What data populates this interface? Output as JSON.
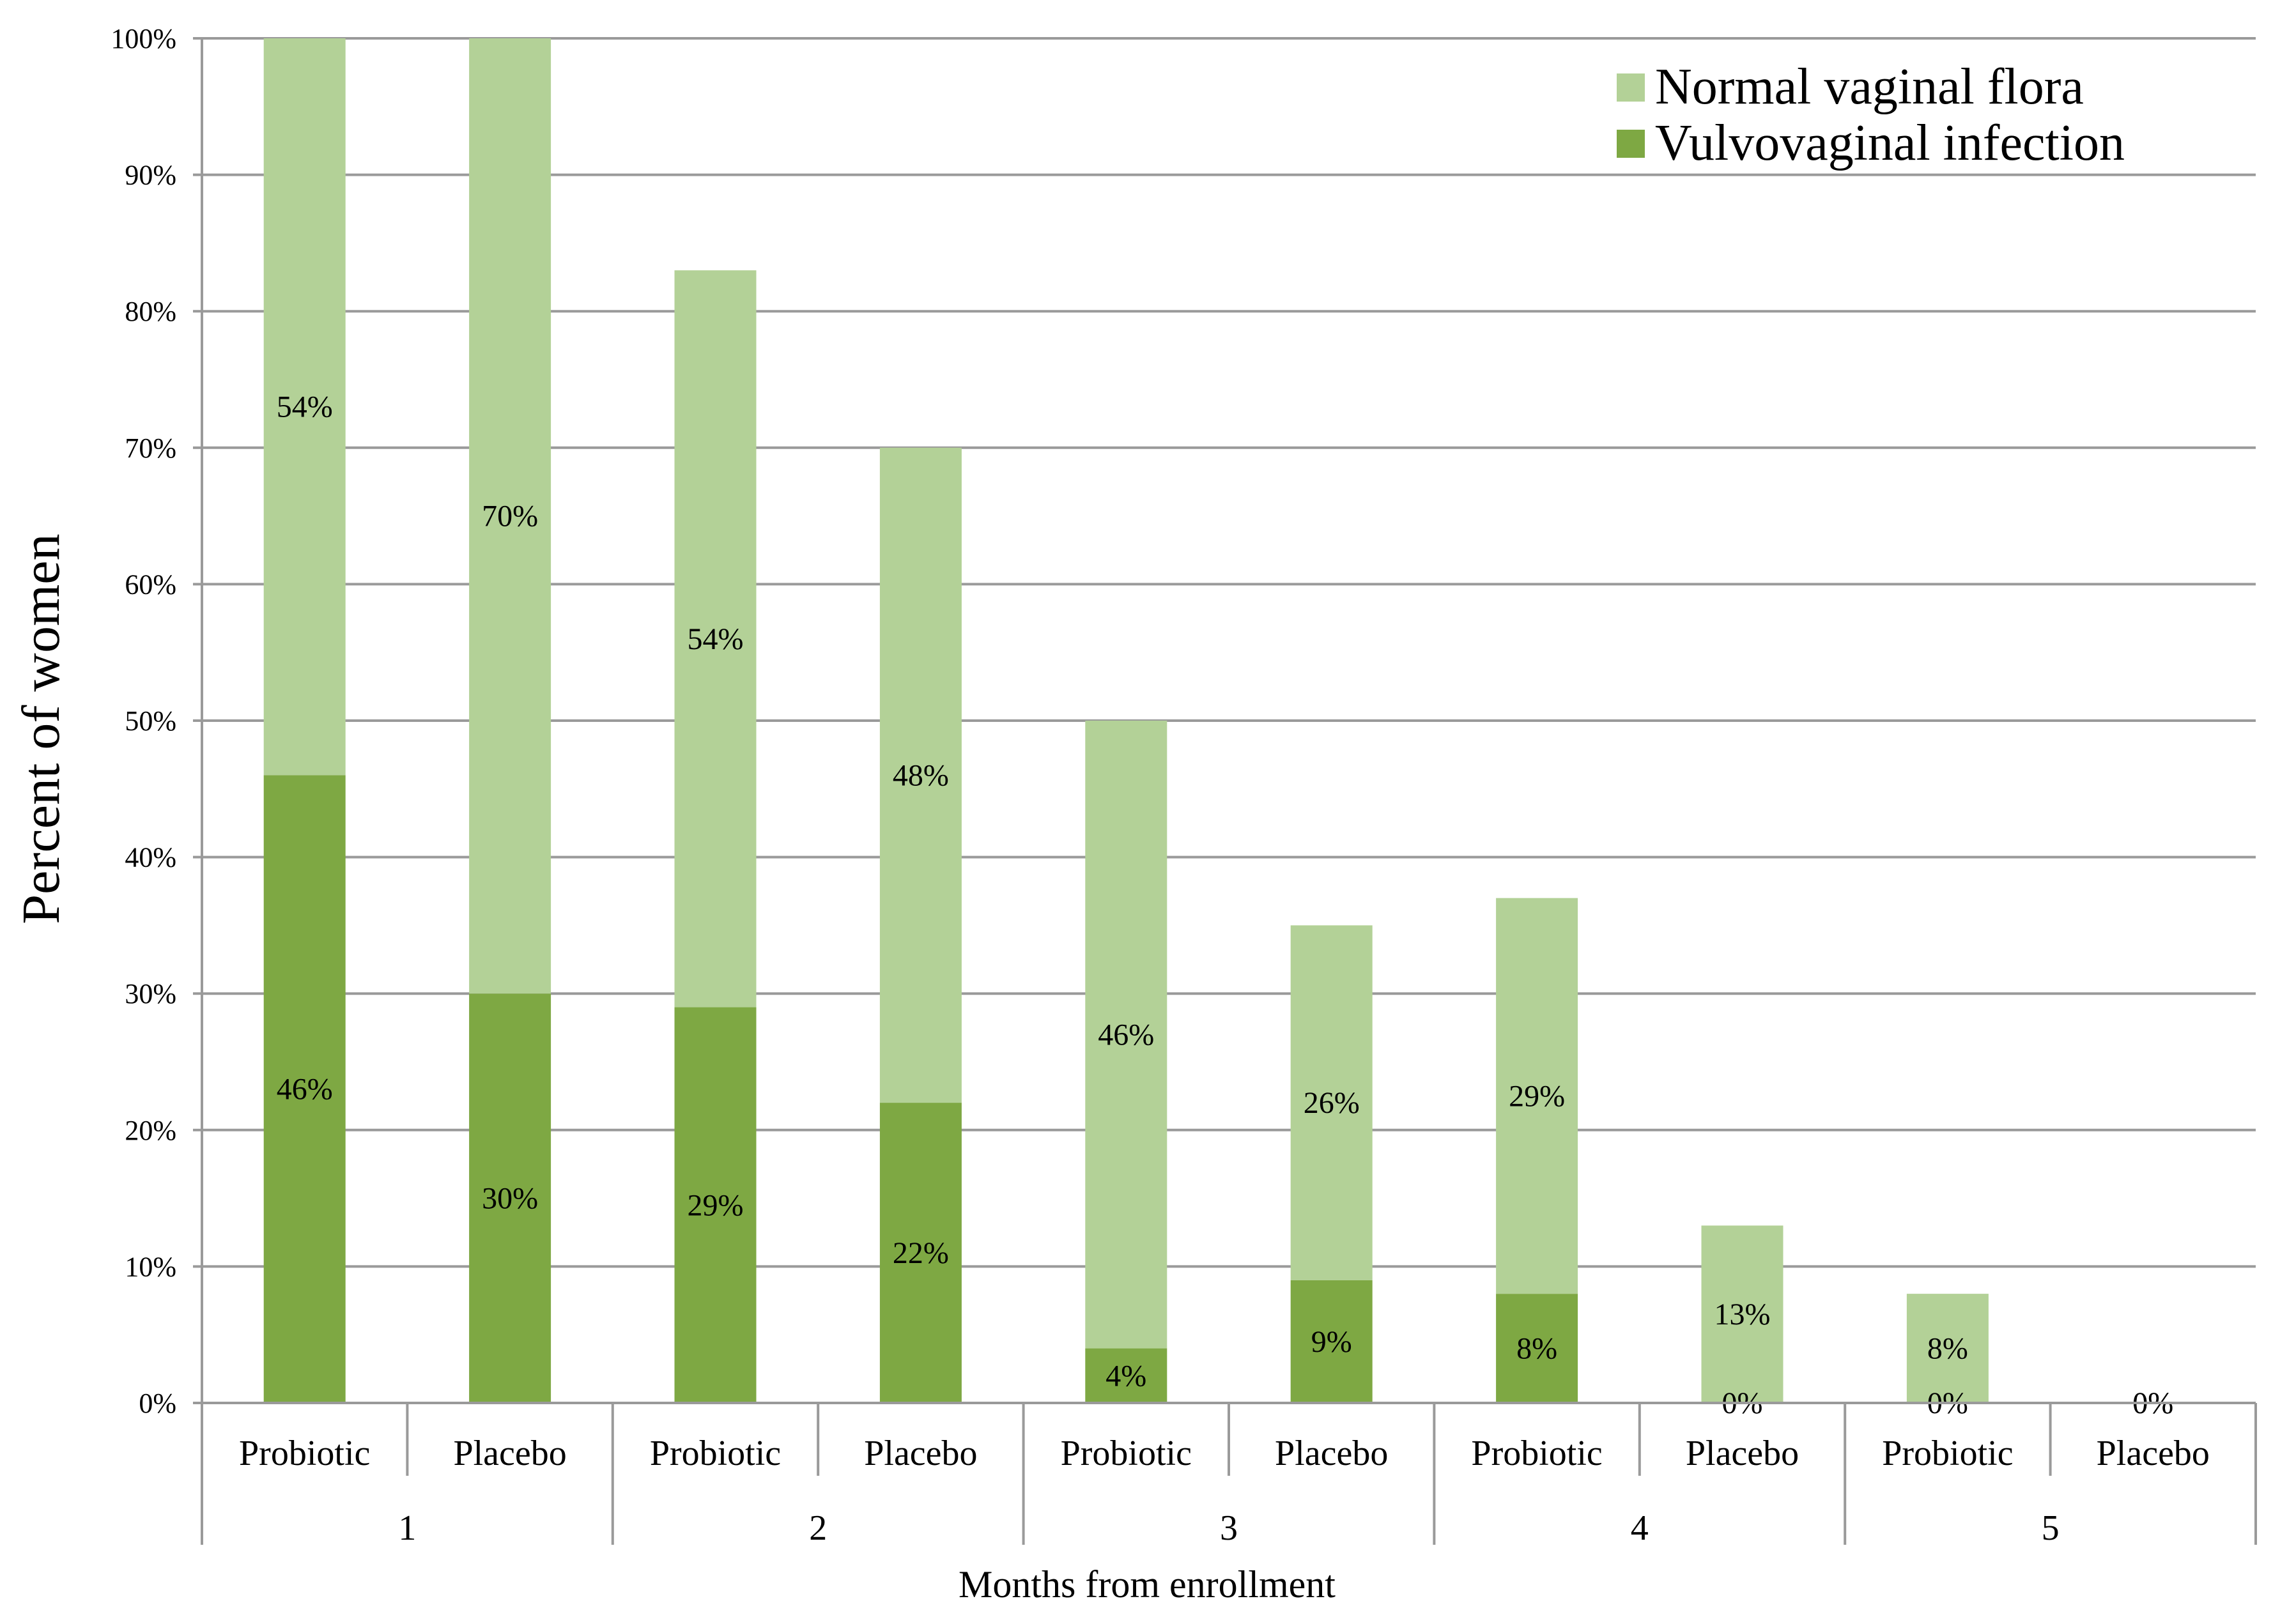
{
  "chart_data": {
    "type": "bar",
    "stacked": true,
    "title": "",
    "xlabel": "Months from enrollment",
    "ylabel": "Percent of women",
    "ylim": [
      0,
      100
    ],
    "y_ticks": [
      "0%",
      "10%",
      "20%",
      "30%",
      "40%",
      "50%",
      "60%",
      "70%",
      "80%",
      "90%",
      "100%"
    ],
    "groups": [
      "1",
      "2",
      "3",
      "4",
      "5"
    ],
    "categories": [
      "Probiotic",
      "Placebo",
      "Probiotic",
      "Placebo",
      "Probiotic",
      "Placebo",
      "Probiotic",
      "Placebo",
      "Probiotic",
      "Placebo"
    ],
    "series": [
      {
        "name": "Vulvovaginal infection",
        "color": "#7ea843",
        "values": [
          46,
          30,
          29,
          22,
          4,
          9,
          8,
          0,
          0,
          0
        ],
        "labels": [
          "46%",
          "30%",
          "29%",
          "22%",
          "4%",
          "9%",
          "8%",
          "0%",
          "0%",
          "0%"
        ]
      },
      {
        "name": "Normal vaginal flora",
        "color": "#b3d197",
        "values": [
          54,
          70,
          54,
          48,
          46,
          26,
          29,
          13,
          8,
          0
        ],
        "labels": [
          "54%",
          "70%",
          "54%",
          "48%",
          "46%",
          "26%",
          "29%",
          "13%",
          "8%",
          "0%"
        ]
      }
    ],
    "legend": {
      "position": "top-right",
      "items": [
        "Normal vaginal flora",
        "Vulvovaginal infection"
      ]
    },
    "grid": true
  }
}
